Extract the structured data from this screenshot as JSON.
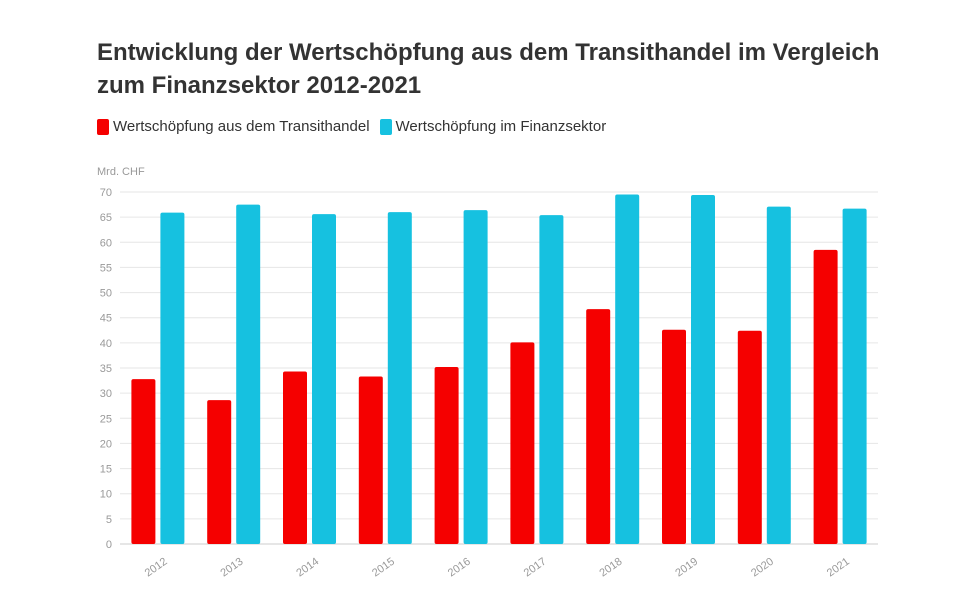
{
  "chart_data": {
    "type": "bar",
    "title": "Entwicklung der Wertschöpfung aus dem Transithandel im Vergleich zum Finanzsektor 2012-2021",
    "ylabel": "Mrd. CHF",
    "xlabel": "",
    "ylim": [
      0,
      70
    ],
    "yticks": [
      0,
      5,
      10,
      15,
      20,
      25,
      30,
      35,
      40,
      45,
      50,
      55,
      60,
      65,
      70
    ],
    "grid": true,
    "legend_position": "top-left",
    "categories": [
      "2012",
      "2013",
      "2014",
      "2015",
      "2016",
      "2017",
      "2018",
      "2019",
      "2020",
      "2021"
    ],
    "series": [
      {
        "name": "Wertschöpfung aus dem Transithandel",
        "color": "#f50000",
        "values": [
          32.8,
          28.6,
          34.3,
          33.3,
          35.2,
          40.1,
          46.7,
          42.6,
          42.4,
          58.5
        ]
      },
      {
        "name": "Wertschöpfung im Finanzsektor",
        "color": "#16c1e0",
        "values": [
          65.9,
          67.5,
          65.6,
          66.0,
          66.4,
          65.4,
          69.5,
          69.4,
          67.1,
          66.7
        ]
      }
    ]
  }
}
